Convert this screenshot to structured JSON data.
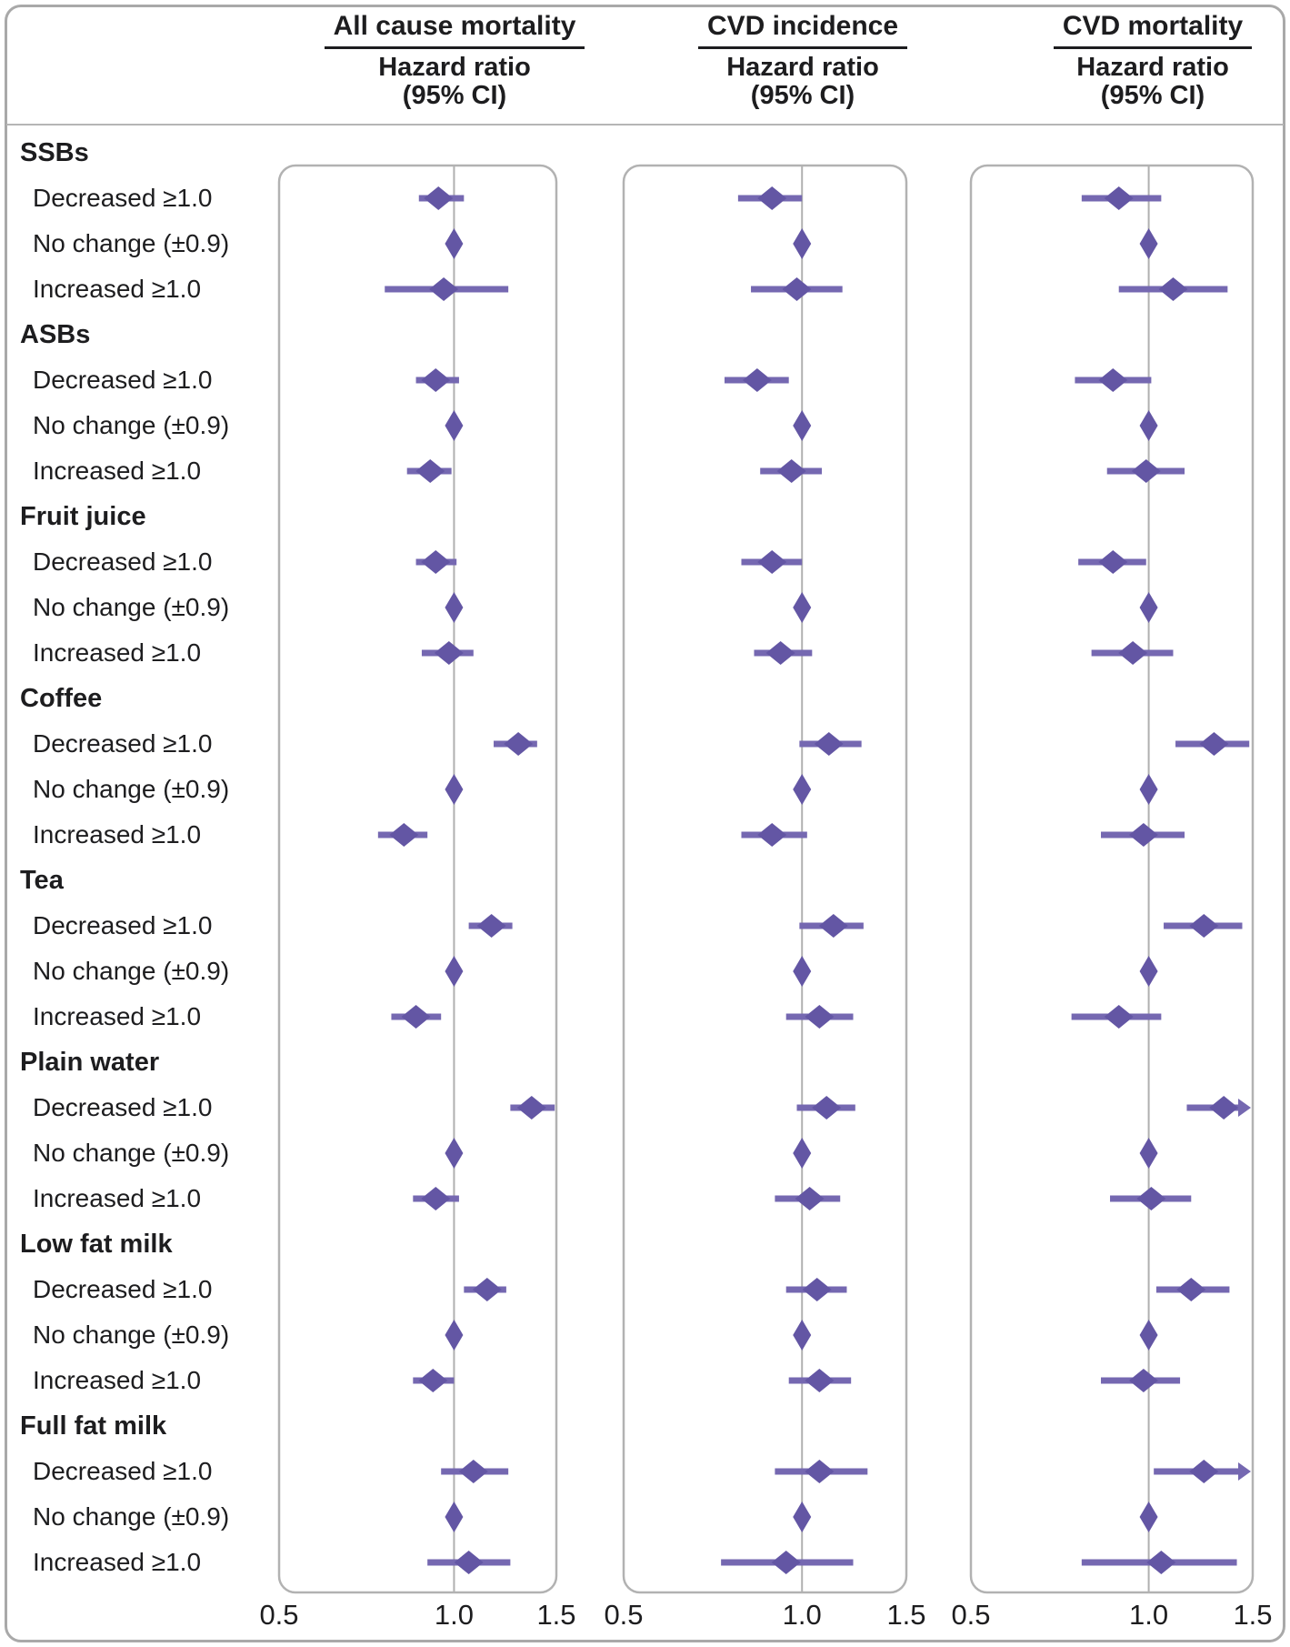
{
  "chart_data": {
    "type": "forest",
    "x_scale": "log",
    "x_range": [
      0.5,
      1.5
    ],
    "x_ticks": [
      "0.5",
      "1.0",
      "1.5"
    ],
    "x_tick_values": [
      0.5,
      1.0,
      1.5
    ],
    "reference_line": 1.0,
    "grid": "reference-line-only",
    "colors": {
      "diamond": "#6356a4",
      "ci_line": "#7568b1",
      "panel_border": "#b2b2b2",
      "reference_gray": "#b0b0b0",
      "text": "#1d1d1f"
    },
    "columns": [
      {
        "title": "All cause mortality",
        "subtitle": "Hazard ratio",
        "subtitle2": "(95% CI)"
      },
      {
        "title": "CVD incidence",
        "subtitle": "Hazard ratio",
        "subtitle2": "(95% CI)"
      },
      {
        "title": "CVD mortality",
        "subtitle": "Hazard ratio",
        "subtitle2": "(95% CI)"
      }
    ],
    "groups": [
      {
        "name": "SSBs",
        "rows": [
          {
            "label": "Decreased ≥1.0",
            "estimates": [
              {
                "hr": 0.94,
                "lo": 0.87,
                "hi": 1.04
              },
              {
                "hr": 0.89,
                "lo": 0.78,
                "hi": 1.0
              },
              {
                "hr": 0.89,
                "lo": 0.77,
                "hi": 1.05
              }
            ]
          },
          {
            "label": "No change (±0.9)",
            "reference": true,
            "estimates": [
              {
                "hr": 1.0
              },
              {
                "hr": 1.0
              },
              {
                "hr": 1.0
              }
            ]
          },
          {
            "label": "Increased ≥1.0",
            "estimates": [
              {
                "hr": 0.96,
                "lo": 0.76,
                "hi": 1.24
              },
              {
                "hr": 0.98,
                "lo": 0.82,
                "hi": 1.17
              },
              {
                "hr": 1.1,
                "lo": 0.89,
                "hi": 1.36
              }
            ]
          }
        ]
      },
      {
        "name": "ASBs",
        "rows": [
          {
            "label": "Decreased ≥1.0",
            "estimates": [
              {
                "hr": 0.93,
                "lo": 0.86,
                "hi": 1.02
              },
              {
                "hr": 0.84,
                "lo": 0.74,
                "hi": 0.95
              },
              {
                "hr": 0.87,
                "lo": 0.75,
                "hi": 1.01
              }
            ]
          },
          {
            "label": "No change (±0.9)",
            "reference": true,
            "estimates": [
              {
                "hr": 1.0
              },
              {
                "hr": 1.0
              },
              {
                "hr": 1.0
              }
            ]
          },
          {
            "label": "Increased ≥1.0",
            "estimates": [
              {
                "hr": 0.91,
                "lo": 0.83,
                "hi": 0.99
              },
              {
                "hr": 0.96,
                "lo": 0.85,
                "hi": 1.08
              },
              {
                "hr": 0.99,
                "lo": 0.85,
                "hi": 1.15
              }
            ]
          }
        ]
      },
      {
        "name": "Fruit juice",
        "rows": [
          {
            "label": "Decreased ≥1.0",
            "estimates": [
              {
                "hr": 0.93,
                "lo": 0.86,
                "hi": 1.01
              },
              {
                "hr": 0.89,
                "lo": 0.79,
                "hi": 1.0
              },
              {
                "hr": 0.87,
                "lo": 0.76,
                "hi": 0.99
              }
            ]
          },
          {
            "label": "No change (±0.9)",
            "reference": true,
            "estimates": [
              {
                "hr": 1.0
              },
              {
                "hr": 1.0
              },
              {
                "hr": 1.0
              }
            ]
          },
          {
            "label": "Increased ≥1.0",
            "estimates": [
              {
                "hr": 0.98,
                "lo": 0.88,
                "hi": 1.08
              },
              {
                "hr": 0.92,
                "lo": 0.83,
                "hi": 1.04
              },
              {
                "hr": 0.94,
                "lo": 0.8,
                "hi": 1.1
              }
            ]
          }
        ]
      },
      {
        "name": "Coffee",
        "rows": [
          {
            "label": "Decreased ≥1.0",
            "estimates": [
              {
                "hr": 1.29,
                "lo": 1.17,
                "hi": 1.39
              },
              {
                "hr": 1.11,
                "lo": 0.99,
                "hi": 1.26
              },
              {
                "hr": 1.29,
                "lo": 1.11,
                "hi": 1.48
              }
            ]
          },
          {
            "label": "No change (±0.9)",
            "reference": true,
            "estimates": [
              {
                "hr": 1.0
              },
              {
                "hr": 1.0
              },
              {
                "hr": 1.0
              }
            ]
          },
          {
            "label": "Increased ≥1.0",
            "estimates": [
              {
                "hr": 0.82,
                "lo": 0.74,
                "hi": 0.9
              },
              {
                "hr": 0.89,
                "lo": 0.79,
                "hi": 1.02
              },
              {
                "hr": 0.98,
                "lo": 0.83,
                "hi": 1.15
              }
            ]
          }
        ]
      },
      {
        "name": "Tea",
        "rows": [
          {
            "label": "Decreased ≥1.0",
            "estimates": [
              {
                "hr": 1.16,
                "lo": 1.06,
                "hi": 1.26
              },
              {
                "hr": 1.13,
                "lo": 0.99,
                "hi": 1.27
              },
              {
                "hr": 1.24,
                "lo": 1.06,
                "hi": 1.44
              }
            ]
          },
          {
            "label": "No change (±0.9)",
            "reference": true,
            "estimates": [
              {
                "hr": 1.0
              },
              {
                "hr": 1.0
              },
              {
                "hr": 1.0
              }
            ]
          },
          {
            "label": "Increased ≥1.0",
            "estimates": [
              {
                "hr": 0.86,
                "lo": 0.78,
                "hi": 0.95
              },
              {
                "hr": 1.07,
                "lo": 0.94,
                "hi": 1.22
              },
              {
                "hr": 0.89,
                "lo": 0.74,
                "hi": 1.05
              }
            ]
          }
        ]
      },
      {
        "name": "Plain water",
        "rows": [
          {
            "label": "Decreased ≥1.0",
            "estimates": [
              {
                "hr": 1.36,
                "lo": 1.25,
                "hi": 1.49
              },
              {
                "hr": 1.1,
                "lo": 0.98,
                "hi": 1.23
              },
              {
                "hr": 1.34,
                "lo": 1.16,
                "hi": 1.5,
                "arrow": true
              }
            ]
          },
          {
            "label": "No change (±0.9)",
            "reference": true,
            "estimates": [
              {
                "hr": 1.0
              },
              {
                "hr": 1.0
              },
              {
                "hr": 1.0
              }
            ]
          },
          {
            "label": "Increased ≥1.0",
            "estimates": [
              {
                "hr": 0.93,
                "lo": 0.85,
                "hi": 1.02
              },
              {
                "hr": 1.03,
                "lo": 0.9,
                "hi": 1.16
              },
              {
                "hr": 1.01,
                "lo": 0.86,
                "hi": 1.18
              }
            ]
          }
        ]
      },
      {
        "name": "Low fat milk",
        "rows": [
          {
            "label": "Decreased ≥1.0",
            "estimates": [
              {
                "hr": 1.14,
                "lo": 1.04,
                "hi": 1.23
              },
              {
                "hr": 1.06,
                "lo": 0.94,
                "hi": 1.19
              },
              {
                "hr": 1.18,
                "lo": 1.03,
                "hi": 1.37
              }
            ]
          },
          {
            "label": "No change (±0.9)",
            "reference": true,
            "estimates": [
              {
                "hr": 1.0
              },
              {
                "hr": 1.0
              },
              {
                "hr": 1.0
              }
            ]
          },
          {
            "label": "Increased ≥1.0",
            "estimates": [
              {
                "hr": 0.92,
                "lo": 0.85,
                "hi": 1.0
              },
              {
                "hr": 1.07,
                "lo": 0.95,
                "hi": 1.21
              },
              {
                "hr": 0.98,
                "lo": 0.83,
                "hi": 1.13
              }
            ]
          }
        ]
      },
      {
        "name": "Full fat milk",
        "rows": [
          {
            "label": "Decreased ≥1.0",
            "estimates": [
              {
                "hr": 1.08,
                "lo": 0.95,
                "hi": 1.24
              },
              {
                "hr": 1.07,
                "lo": 0.9,
                "hi": 1.29
              },
              {
                "hr": 1.24,
                "lo": 1.02,
                "hi": 1.5,
                "arrow": true
              }
            ]
          },
          {
            "label": "No change (±0.9)",
            "reference": true,
            "estimates": [
              {
                "hr": 1.0
              },
              {
                "hr": 1.0
              },
              {
                "hr": 1.0
              }
            ]
          },
          {
            "label": "Increased ≥1.0",
            "estimates": [
              {
                "hr": 1.06,
                "lo": 0.9,
                "hi": 1.25
              },
              {
                "hr": 0.94,
                "lo": 0.73,
                "hi": 1.22
              },
              {
                "hr": 1.05,
                "lo": 0.77,
                "hi": 1.41
              }
            ]
          }
        ]
      }
    ]
  }
}
